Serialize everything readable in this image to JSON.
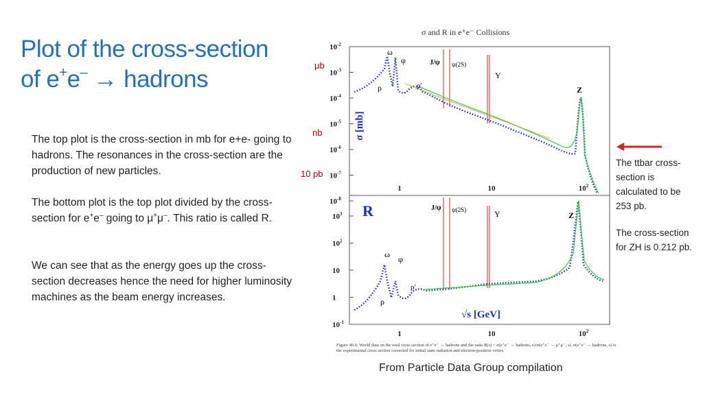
{
  "slide": {
    "title_line1": "Plot of the cross-section",
    "title_line2_pre": "of e",
    "title_line2_sup1": "+",
    "title_line2_mid": "e",
    "title_line2_sup2": "–",
    "title_line2_post": " → hadrons",
    "para1": "The top plot is the cross-section in mb for e+e- going to hadrons. The resonances in the cross-section are the production of new particles.",
    "para2_pre": "The bottom plot is the top plot divided by the cross-section for e",
    "para2_sup1": "+",
    "para2_mid1": "e",
    "para2_sup2": "–",
    "para2_mid2": " going to μ",
    "para2_sup3": "+",
    "para2_mid3": "μ",
    "para2_sup4": "–",
    "para2_post": ". This ratio is called R.",
    "para3": "We can see that as the energy goes up the cross-section decreases hence the need for higher luminosity machines as the beam energy increases.",
    "ann_mub": "μb",
    "ann_nb": "nb",
    "ann_10pb": "10 pb",
    "side_note1": "The ttbar cross-section is calculated to be 253 pb.",
    "side_note2": "The cross-section  for ZH is 0.212 pb.",
    "caption": "From Particle Data Group compilation",
    "arrow_color": "#e02020",
    "title_color": "#1f6fc4"
  },
  "figure": {
    "header": "σ and R in e⁺e⁻ Collisions",
    "top_ylabel": "σ [mb]",
    "bottom_ylabel": "R",
    "xlabel": "√s [GeV]",
    "top_yticks": [
      {
        "base": "10",
        "exp": "-2"
      },
      {
        "base": "10",
        "exp": "-3"
      },
      {
        "base": "10",
        "exp": "-4"
      },
      {
        "base": "10",
        "exp": "-5"
      },
      {
        "base": "10",
        "exp": "-6"
      },
      {
        "base": "10",
        "exp": "-7"
      },
      {
        "base": "10",
        "exp": "-8"
      }
    ],
    "bottom_yticks": [
      {
        "base": "10",
        "exp": "3"
      },
      {
        "base": "10",
        "exp": "2"
      },
      {
        "base": "10",
        "exp": ""
      },
      {
        "base": "1",
        "exp": ""
      },
      {
        "base": "10",
        "exp": "-1"
      }
    ],
    "xticks": [
      {
        "base": "1",
        "exp": ""
      },
      {
        "base": "10",
        "exp": ""
      },
      {
        "base": "10",
        "exp": "2"
      }
    ],
    "top_labels": {
      "omega": "ω",
      "phi": "φ",
      "rho": "ρ",
      "rho_prime": "ρ′",
      "jpsi": "J/ψ",
      "psi2s": "ψ(2S)",
      "upsilon": "Υ",
      "z": "Z"
    },
    "bottom_labels": {
      "omega": "ω",
      "phi": "φ",
      "rho": "ρ",
      "rho_prime": "ρ′",
      "jpsi": "J/ψ",
      "psi2s": "ψ(2S)",
      "upsilon": "Υ",
      "z": "Z"
    },
    "footnote": "Figure 40.6: World data on the total cross section of e⁺e⁻ → hadrons and the ratio R(s) = σ(e⁺e⁻ → hadrons, s)/σ(e⁺e⁻ → μ⁺μ⁻, s). σ(e⁺e⁻ → hadrons, s) is the experimental cross section corrected for initial state radiation and electron-positron vertex",
    "data_color": "#1a2ecc",
    "fit_color": "#2ecc40",
    "resonance_color": "#e02020"
  }
}
